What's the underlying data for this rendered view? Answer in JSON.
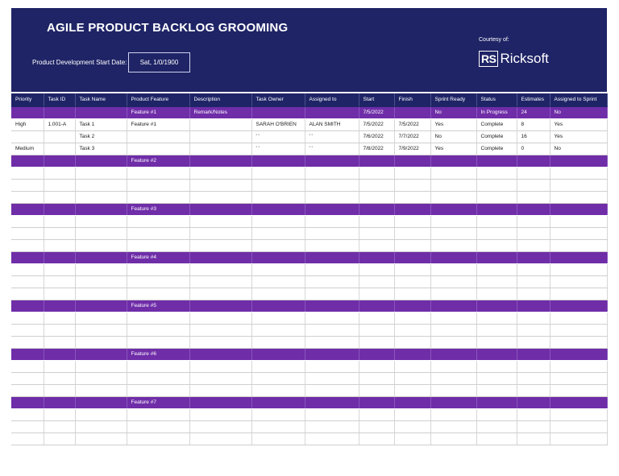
{
  "header": {
    "title": "AGILE PRODUCT BACKLOG GROOMING",
    "start_date_label": "Product Development Start Date:",
    "start_date_value": "Sat, 1/0/1900",
    "courtesy_label": "Courtesy of:",
    "logo_mark": "RS",
    "logo_text": "Ricksoft"
  },
  "colors": {
    "banner": "#1f2466",
    "feature_row": "#6f2da8",
    "header_text": "#ffffff"
  },
  "table": {
    "columns": [
      "Priority",
      "Task ID",
      "Task Name",
      "Product Feature",
      "Description",
      "Task Owner",
      "Assigned to",
      "Start",
      "Finish",
      "Sprint Ready",
      "Status",
      "Estimates",
      "Assigned to Sprint"
    ],
    "rows": [
      {
        "type": "feature",
        "cells": [
          "",
          "",
          "",
          "Feature #1",
          "Remark/Notes",
          "",
          "",
          "7/5/2022",
          "",
          "No",
          "In Progress",
          "24",
          "No"
        ]
      },
      {
        "type": "task",
        "cells": [
          "High",
          "1.001-A",
          "Task 1",
          "Feature #1",
          "",
          "SARAH O'BRIEN",
          "ALAN SMITH",
          "7/5/2022",
          "7/5/2022",
          "Yes",
          "Complete",
          "8",
          "Yes"
        ]
      },
      {
        "type": "task",
        "cells": [
          "",
          "",
          "Task 2",
          "",
          "",
          "' '",
          "' '",
          "7/6/2022",
          "7/7/2022",
          "No",
          "Complete",
          "16",
          "Yes"
        ]
      },
      {
        "type": "task",
        "cells": [
          "Medium",
          "",
          "Task 3",
          "",
          "",
          "' '",
          "' '",
          "7/8/2022",
          "7/9/2022",
          "Yes",
          "Complete",
          "0",
          "No"
        ]
      },
      {
        "type": "feature",
        "cells": [
          "",
          "",
          "",
          "Feature #2",
          "",
          "",
          "",
          "",
          "",
          "",
          "",
          "",
          ""
        ]
      },
      {
        "type": "task",
        "cells": [
          "",
          "",
          "",
          "",
          "",
          "",
          "",
          "",
          "",
          "",
          "",
          "",
          ""
        ]
      },
      {
        "type": "task",
        "cells": [
          "",
          "",
          "",
          "",
          "",
          "",
          "",
          "",
          "",
          "",
          "",
          "",
          ""
        ]
      },
      {
        "type": "task",
        "cells": [
          "",
          "",
          "",
          "",
          "",
          "",
          "",
          "",
          "",
          "",
          "",
          "",
          ""
        ]
      },
      {
        "type": "feature",
        "cells": [
          "",
          "",
          "",
          "Feature #3",
          "",
          "",
          "",
          "",
          "",
          "",
          "",
          "",
          ""
        ]
      },
      {
        "type": "task",
        "cells": [
          "",
          "",
          "",
          "",
          "",
          "",
          "",
          "",
          "",
          "",
          "",
          "",
          ""
        ]
      },
      {
        "type": "task",
        "cells": [
          "",
          "",
          "",
          "",
          "",
          "",
          "",
          "",
          "",
          "",
          "",
          "",
          ""
        ]
      },
      {
        "type": "task",
        "cells": [
          "",
          "",
          "",
          "",
          "",
          "",
          "",
          "",
          "",
          "",
          "",
          "",
          ""
        ]
      },
      {
        "type": "feature",
        "cells": [
          "",
          "",
          "",
          "Feature #4",
          "",
          "",
          "",
          "",
          "",
          "",
          "",
          "",
          ""
        ]
      },
      {
        "type": "task",
        "cells": [
          "",
          "",
          "",
          "",
          "",
          "",
          "",
          "",
          "",
          "",
          "",
          "",
          ""
        ]
      },
      {
        "type": "task",
        "cells": [
          "",
          "",
          "",
          "",
          "",
          "",
          "",
          "",
          "",
          "",
          "",
          "",
          ""
        ]
      },
      {
        "type": "task",
        "cells": [
          "",
          "",
          "",
          "",
          "",
          "",
          "",
          "",
          "",
          "",
          "",
          "",
          ""
        ]
      },
      {
        "type": "feature",
        "cells": [
          "",
          "",
          "",
          "Feature #5",
          "",
          "",
          "",
          "",
          "",
          "",
          "",
          "",
          ""
        ]
      },
      {
        "type": "task",
        "cells": [
          "",
          "",
          "",
          "",
          "",
          "",
          "",
          "",
          "",
          "",
          "",
          "",
          ""
        ]
      },
      {
        "type": "task",
        "cells": [
          "",
          "",
          "",
          "",
          "",
          "",
          "",
          "",
          "",
          "",
          "",
          "",
          ""
        ]
      },
      {
        "type": "task",
        "cells": [
          "",
          "",
          "",
          "",
          "",
          "",
          "",
          "",
          "",
          "",
          "",
          "",
          ""
        ]
      },
      {
        "type": "feature",
        "cells": [
          "",
          "",
          "",
          "Feature #6",
          "",
          "",
          "",
          "",
          "",
          "",
          "",
          "",
          ""
        ]
      },
      {
        "type": "task",
        "cells": [
          "",
          "",
          "",
          "",
          "",
          "",
          "",
          "",
          "",
          "",
          "",
          "",
          ""
        ]
      },
      {
        "type": "task",
        "cells": [
          "",
          "",
          "",
          "",
          "",
          "",
          "",
          "",
          "",
          "",
          "",
          "",
          ""
        ]
      },
      {
        "type": "task",
        "cells": [
          "",
          "",
          "",
          "",
          "",
          "",
          "",
          "",
          "",
          "",
          "",
          "",
          ""
        ]
      },
      {
        "type": "feature",
        "cells": [
          "",
          "",
          "",
          "Feature #7",
          "",
          "",
          "",
          "",
          "",
          "",
          "",
          "",
          ""
        ]
      },
      {
        "type": "task",
        "cells": [
          "",
          "",
          "",
          "",
          "",
          "",
          "",
          "",
          "",
          "",
          "",
          "",
          ""
        ]
      },
      {
        "type": "task",
        "cells": [
          "",
          "",
          "",
          "",
          "",
          "",
          "",
          "",
          "",
          "",
          "",
          "",
          ""
        ]
      },
      {
        "type": "task",
        "cells": [
          "",
          "",
          "",
          "",
          "",
          "",
          "",
          "",
          "",
          "",
          "",
          "",
          ""
        ]
      }
    ]
  }
}
